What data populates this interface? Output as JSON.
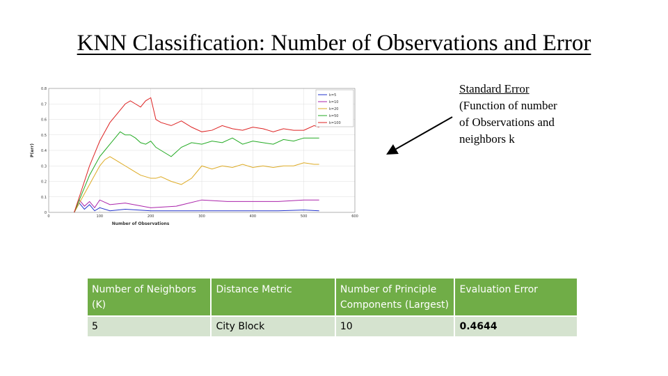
{
  "title": "KNN Classification:  Number of Observations and Error",
  "annotation": {
    "line1": "Standard Error",
    "line2": "(Function of number",
    "line3": "of Observations and",
    "line4": "neighbors k"
  },
  "chart_data": {
    "type": "line",
    "xlabel": "Number of Observations",
    "ylabel": "P(err)",
    "xlim": [
      0,
      600
    ],
    "ylim": [
      0,
      0.8
    ],
    "xticks": [
      0,
      100,
      200,
      300,
      400,
      500,
      600
    ],
    "yticks": [
      0,
      0.1,
      0.2,
      0.3,
      0.4,
      0.5,
      0.6,
      0.7,
      0.8
    ],
    "grid": true,
    "legend_position": "top-right",
    "series": [
      {
        "name": "k=5",
        "color": "#2233cc",
        "x": [
          50,
          60,
          70,
          80,
          90,
          100,
          120,
          150,
          200,
          250,
          300,
          350,
          400,
          450,
          500,
          530
        ],
        "y": [
          0.0,
          0.06,
          0.02,
          0.05,
          0.01,
          0.03,
          0.01,
          0.02,
          0.01,
          0.01,
          0.01,
          0.01,
          0.01,
          0.01,
          0.015,
          0.01
        ]
      },
      {
        "name": "k=10",
        "color": "#aa22aa",
        "x": [
          50,
          60,
          70,
          80,
          90,
          100,
          120,
          150,
          200,
          250,
          300,
          350,
          400,
          450,
          500,
          530
        ],
        "y": [
          0.0,
          0.08,
          0.04,
          0.07,
          0.03,
          0.08,
          0.05,
          0.06,
          0.03,
          0.04,
          0.08,
          0.07,
          0.07,
          0.07,
          0.08,
          0.08
        ]
      },
      {
        "name": "k=20",
        "color": "#ddaa22",
        "x": [
          50,
          60,
          70,
          80,
          90,
          100,
          110,
          120,
          130,
          140,
          150,
          160,
          170,
          180,
          190,
          200,
          210,
          220,
          240,
          260,
          280,
          300,
          320,
          340,
          360,
          380,
          400,
          420,
          440,
          460,
          480,
          500,
          520,
          530
        ],
        "y": [
          0.0,
          0.06,
          0.12,
          0.18,
          0.24,
          0.3,
          0.34,
          0.36,
          0.34,
          0.32,
          0.3,
          0.28,
          0.26,
          0.24,
          0.23,
          0.22,
          0.22,
          0.23,
          0.2,
          0.18,
          0.22,
          0.3,
          0.28,
          0.3,
          0.29,
          0.31,
          0.29,
          0.3,
          0.29,
          0.3,
          0.3,
          0.32,
          0.31,
          0.31
        ]
      },
      {
        "name": "k=50",
        "color": "#22aa22",
        "x": [
          50,
          60,
          70,
          80,
          90,
          100,
          110,
          120,
          130,
          140,
          150,
          160,
          170,
          180,
          190,
          200,
          210,
          220,
          240,
          260,
          280,
          300,
          320,
          340,
          360,
          380,
          400,
          420,
          440,
          460,
          480,
          500,
          520,
          530
        ],
        "y": [
          0.0,
          0.08,
          0.16,
          0.24,
          0.3,
          0.36,
          0.4,
          0.44,
          0.48,
          0.52,
          0.5,
          0.5,
          0.48,
          0.45,
          0.44,
          0.46,
          0.42,
          0.4,
          0.36,
          0.42,
          0.45,
          0.44,
          0.46,
          0.45,
          0.48,
          0.44,
          0.46,
          0.45,
          0.44,
          0.47,
          0.46,
          0.48,
          0.48,
          0.48
        ]
      },
      {
        "name": "k=100",
        "color": "#dd2222",
        "x": [
          50,
          60,
          70,
          80,
          90,
          100,
          110,
          120,
          130,
          140,
          150,
          160,
          170,
          180,
          190,
          200,
          210,
          220,
          240,
          260,
          280,
          300,
          320,
          340,
          360,
          380,
          400,
          420,
          440,
          460,
          480,
          500,
          520,
          530
        ],
        "y": [
          0.0,
          0.1,
          0.2,
          0.3,
          0.38,
          0.46,
          0.52,
          0.58,
          0.62,
          0.66,
          0.7,
          0.72,
          0.7,
          0.68,
          0.72,
          0.74,
          0.6,
          0.58,
          0.56,
          0.59,
          0.55,
          0.52,
          0.53,
          0.56,
          0.54,
          0.53,
          0.55,
          0.54,
          0.52,
          0.54,
          0.53,
          0.53,
          0.56,
          0.55
        ]
      }
    ]
  },
  "table": {
    "headers": [
      "Number of Neighbors (K)",
      "Distance Metric",
      "Number of Principle Components (Largest)",
      "Evaluation Error"
    ],
    "row": [
      "5",
      "City Block",
      "10",
      "0.4644"
    ]
  }
}
